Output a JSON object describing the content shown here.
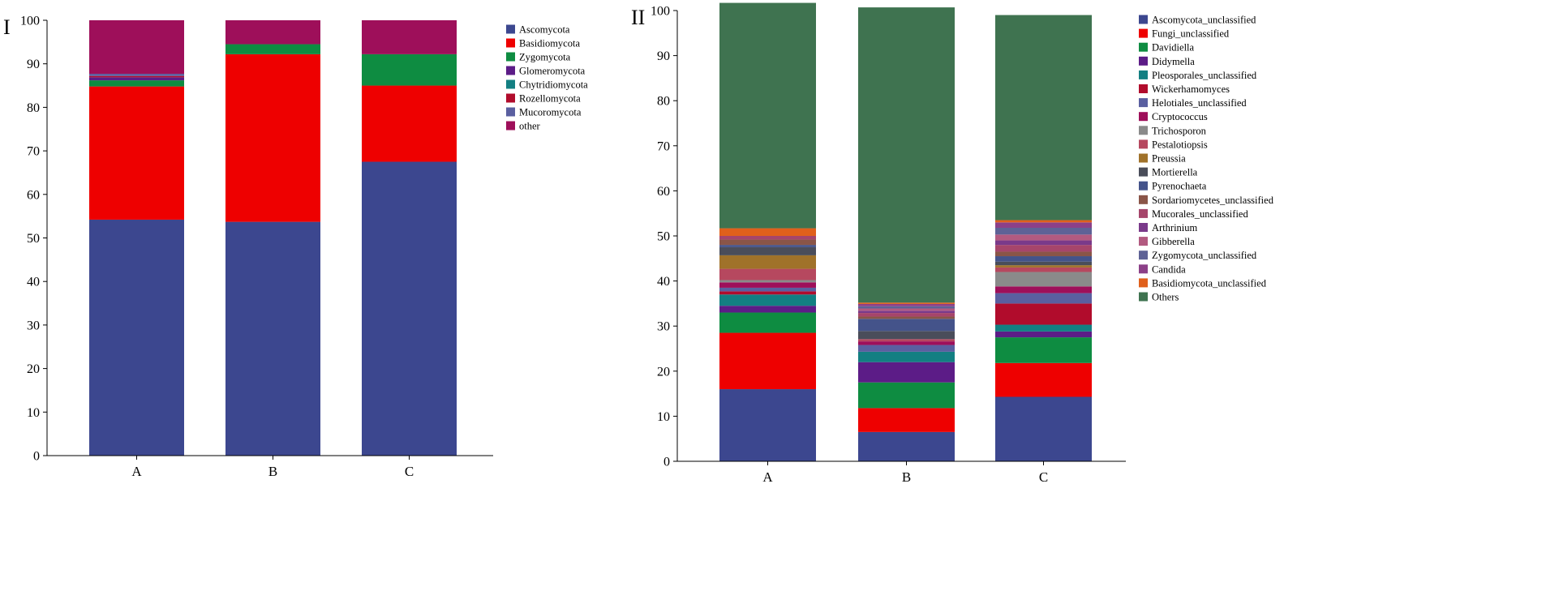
{
  "chart_data": [
    {
      "panel_label": "I",
      "type": "bar",
      "stacked": true,
      "categories": [
        "A",
        "B",
        "C"
      ],
      "ylim": [
        0,
        100
      ],
      "yticks": [
        0,
        10,
        20,
        30,
        40,
        50,
        60,
        70,
        80,
        90,
        100
      ],
      "xlabel": "",
      "ylabel": "",
      "legend_position": "top-right",
      "series": [
        {
          "name": "Ascomycota",
          "color": "#3c478f",
          "values": [
            54.2,
            53.7,
            67.5
          ]
        },
        {
          "name": "Basidiomycota",
          "color": "#ee0000",
          "values": [
            30.6,
            38.5,
            17.5
          ]
        },
        {
          "name": "Zygomycota",
          "color": "#0e8c41",
          "values": [
            1.4,
            2.3,
            7.2
          ]
        },
        {
          "name": "Glomeromycota",
          "color": "#5c1c87",
          "values": [
            0.7,
            0.0,
            0.0
          ]
        },
        {
          "name": "Chytridiomycota",
          "color": "#137f82",
          "values": [
            0.0,
            0.0,
            0.0
          ]
        },
        {
          "name": "Rozellomycota",
          "color": "#b10c2c",
          "values": [
            0.3,
            0.0,
            0.0
          ]
        },
        {
          "name": "Mucoromycota",
          "color": "#5a5fa0",
          "values": [
            0.5,
            0.0,
            0.0
          ]
        },
        {
          "name": "other",
          "color": "#9e0f5a",
          "values": [
            12.3,
            5.5,
            7.8
          ]
        }
      ]
    },
    {
      "panel_label": "II",
      "type": "bar",
      "stacked": true,
      "categories": [
        "A",
        "B",
        "C"
      ],
      "ylim": [
        0,
        100
      ],
      "yticks": [
        0,
        10,
        20,
        30,
        40,
        50,
        60,
        70,
        80,
        90,
        100
      ],
      "xlabel": "",
      "ylabel": "",
      "legend_position": "top-right",
      "series": [
        {
          "name": "Ascomycota_unclassified",
          "color": "#3c478f",
          "values": [
            16.0,
            6.5,
            14.3
          ]
        },
        {
          "name": "Fungi_unclassified",
          "color": "#ee0000",
          "values": [
            12.5,
            5.3,
            7.5
          ]
        },
        {
          "name": "Davidiella",
          "color": "#0e8c41",
          "values": [
            4.5,
            5.7,
            5.7
          ]
        },
        {
          "name": "Didymella",
          "color": "#5c1c87",
          "values": [
            1.5,
            4.5,
            1.3
          ]
        },
        {
          "name": "Pleosporales_unclassified",
          "color": "#137f82",
          "values": [
            2.5,
            2.3,
            1.5
          ]
        },
        {
          "name": "Wickerhamomyces",
          "color": "#b10c2c",
          "values": [
            0.7,
            0.0,
            4.7
          ]
        },
        {
          "name": "Helotiales_unclassified",
          "color": "#5a5fa0",
          "values": [
            0.8,
            1.5,
            2.3
          ]
        },
        {
          "name": "Cryptococcus",
          "color": "#9e0f5a",
          "values": [
            1.2,
            0.8,
            1.5
          ]
        },
        {
          "name": "Trichosporon",
          "color": "#8a8a8a",
          "values": [
            0.5,
            0.0,
            3.2
          ]
        },
        {
          "name": "Pestalotiopsis",
          "color": "#b6485f",
          "values": [
            2.5,
            0.5,
            1.0
          ]
        },
        {
          "name": "Preussia",
          "color": "#a0722a",
          "values": [
            3.0,
            0.0,
            0.5
          ]
        },
        {
          "name": "Mortierella",
          "color": "#4a4d5a",
          "values": [
            1.8,
            1.8,
            0.8
          ]
        },
        {
          "name": "Pyrenochaeta",
          "color": "#44538a",
          "values": [
            0.5,
            2.7,
            1.2
          ]
        },
        {
          "name": "Sordariomycetes_unclassified",
          "color": "#8a5548",
          "values": [
            1.2,
            0.5,
            1.0
          ]
        },
        {
          "name": "Mucorales_unclassified",
          "color": "#a6456b",
          "values": [
            0.8,
            0.8,
            1.5
          ]
        },
        {
          "name": "Arthrinium",
          "color": "#7a3a8a",
          "values": [
            0.0,
            0.5,
            1.0
          ]
        },
        {
          "name": "Gibberella",
          "color": "#b25a80",
          "values": [
            0.0,
            0.5,
            1.3
          ]
        },
        {
          "name": "Zygomycota_unclassified",
          "color": "#5e6296",
          "values": [
            0.0,
            0.5,
            1.5
          ]
        },
        {
          "name": "Candida",
          "color": "#8c4088",
          "values": [
            0.0,
            0.5,
            1.2
          ]
        },
        {
          "name": "Basidiomycota_unclassified",
          "color": "#e0601c",
          "values": [
            1.7,
            0.3,
            0.5
          ]
        },
        {
          "name": "Others",
          "color": "#3f7350",
          "values": [
            50.0,
            65.5,
            45.5
          ]
        }
      ]
    }
  ]
}
